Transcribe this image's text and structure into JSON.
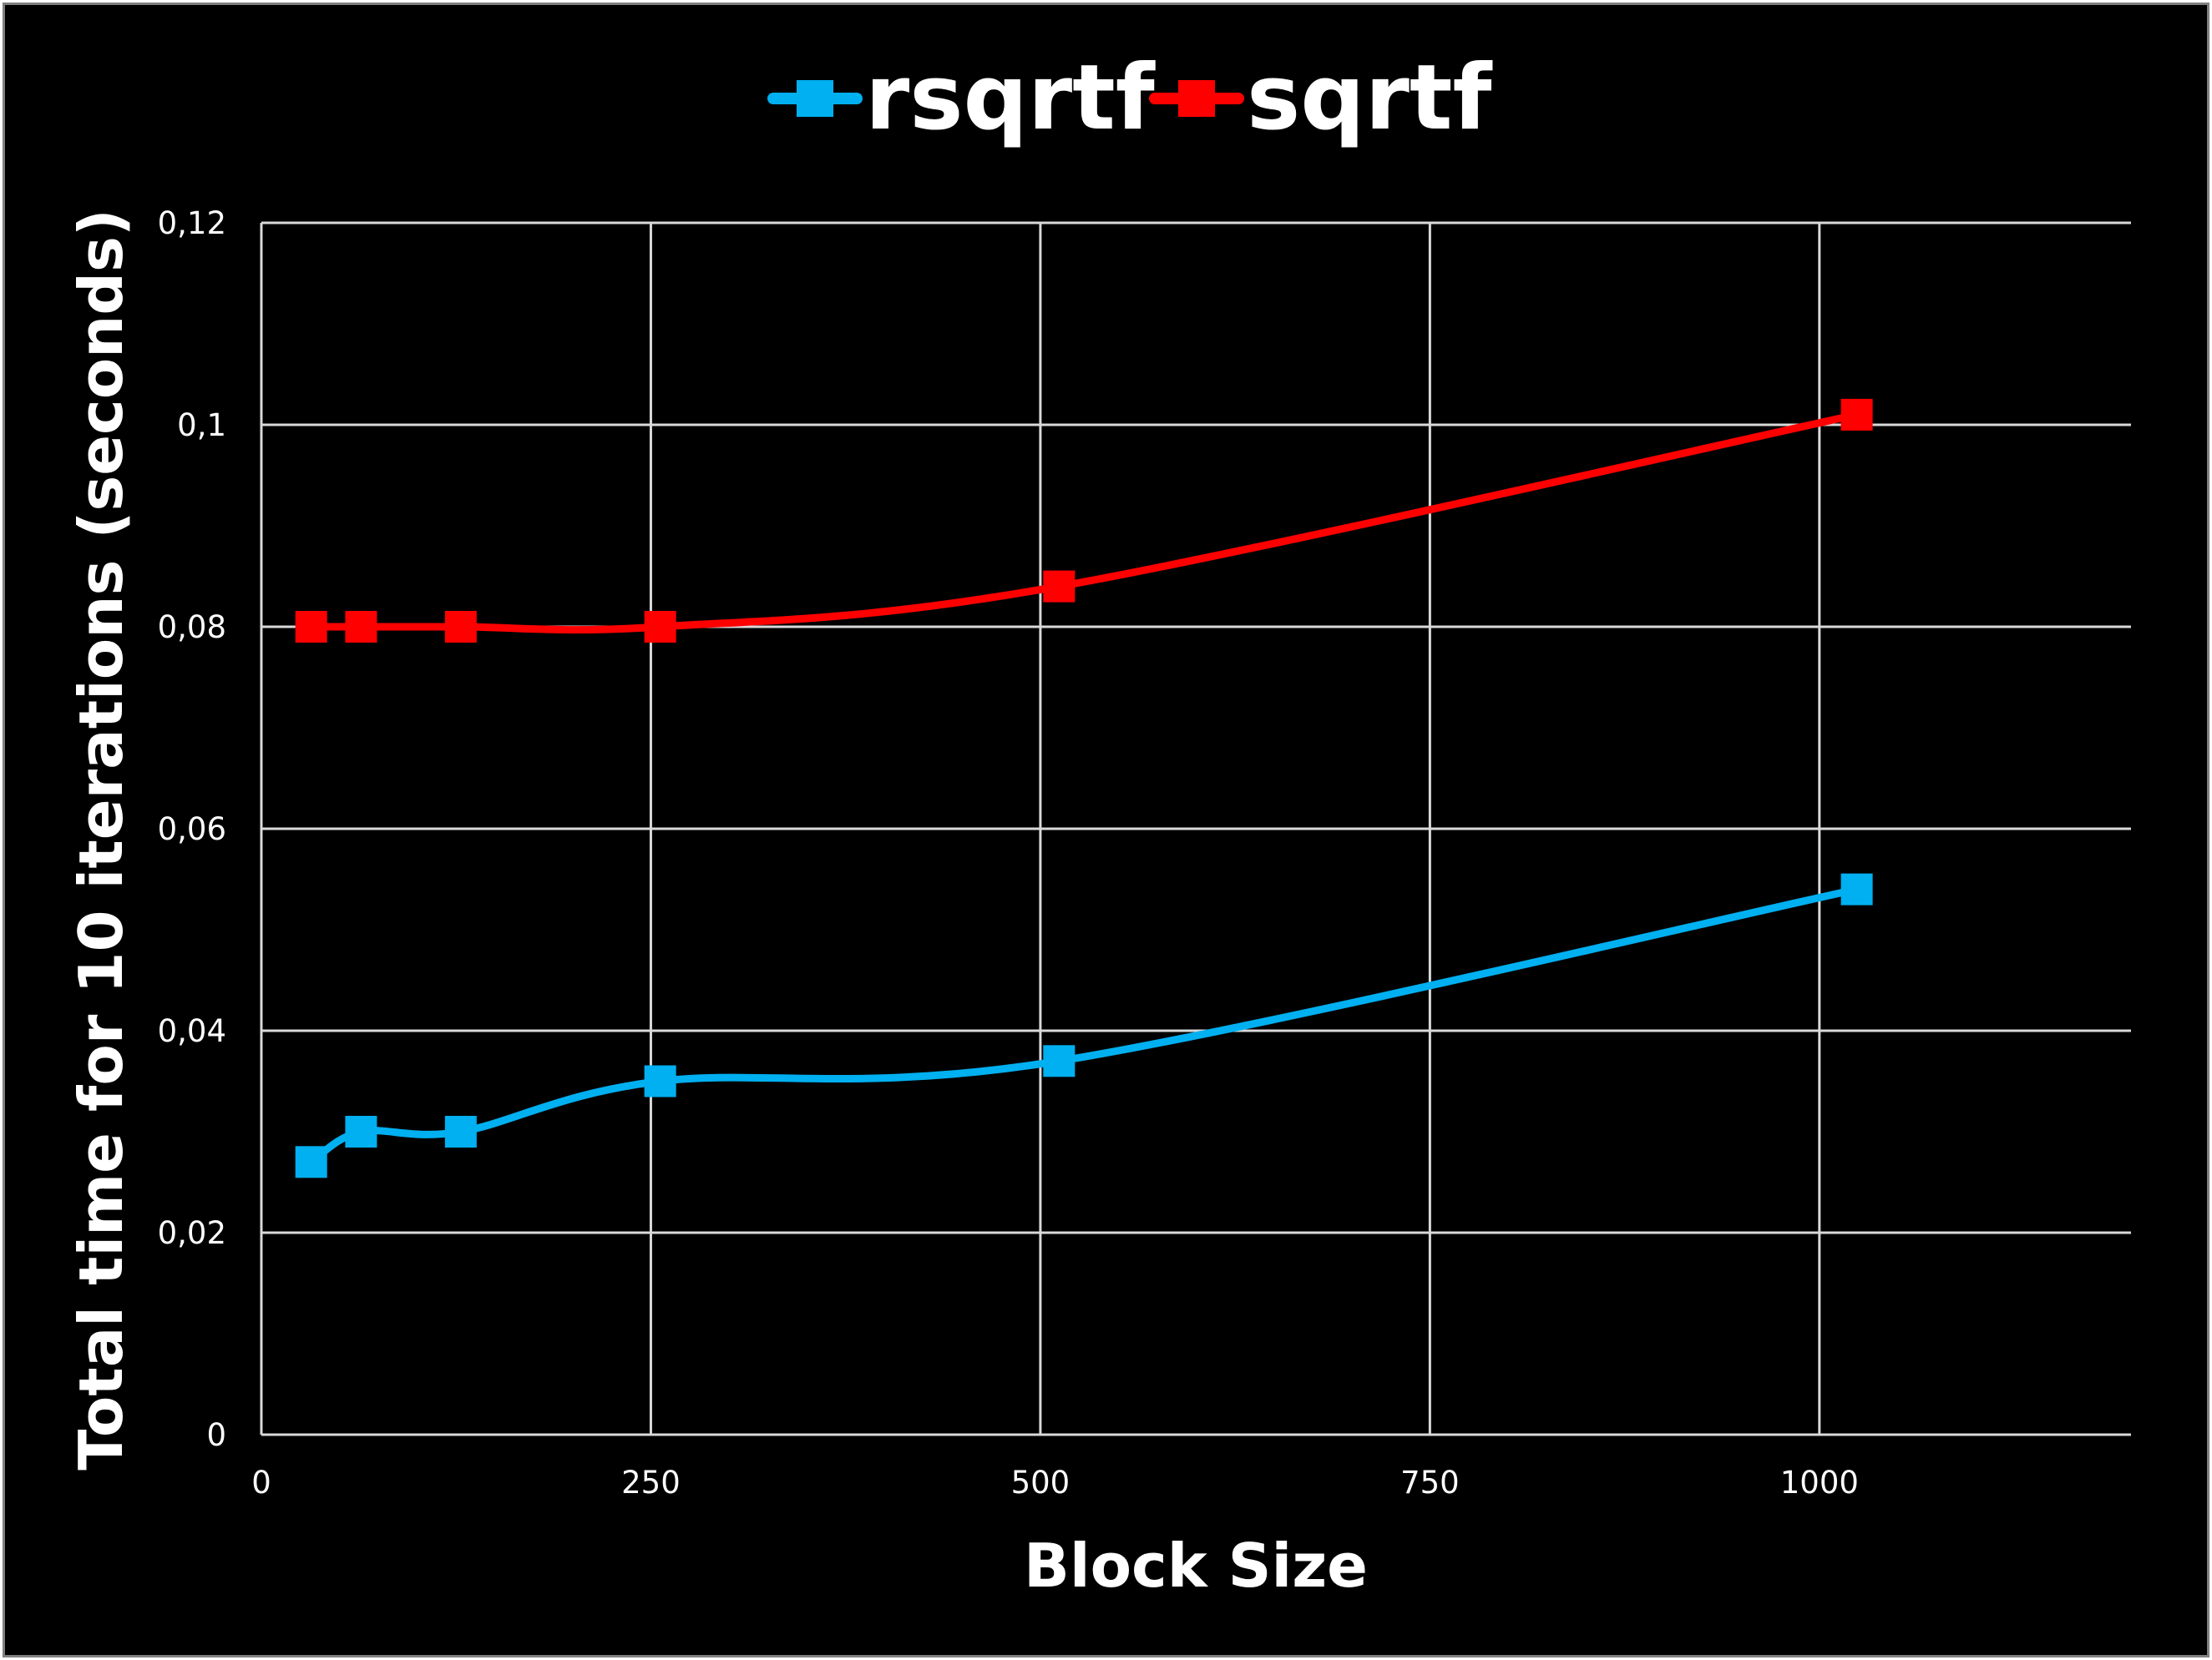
{
  "chart_data": {
    "type": "line",
    "title": "",
    "xlabel": "Block Size",
    "ylabel": "Total time for 10 iterations (seconds)",
    "xlim": [
      0,
      1200
    ],
    "ylim": [
      0,
      0.12
    ],
    "x_ticks": [
      0,
      250,
      500,
      750,
      1000
    ],
    "x_tick_labels": [
      "0",
      "250",
      "500",
      "750",
      "1000"
    ],
    "y_ticks": [
      0,
      0.02,
      0.04,
      0.06,
      0.08,
      0.1,
      0.12
    ],
    "y_tick_labels": [
      "0",
      "0,02",
      "0,04",
      "0,06",
      "0,08",
      "0,1",
      "0,12"
    ],
    "grid": true,
    "legend_position": "top-center",
    "smoothed": true,
    "marker": "square",
    "background_color": "#000000",
    "text_color": "#ffffff",
    "series": [
      {
        "name": "rsqrtf",
        "color": "#00b0f0",
        "x": [
          32,
          64,
          128,
          256,
          512,
          1024
        ],
        "y": [
          0.027,
          0.03,
          0.03,
          0.035,
          0.037,
          0.054
        ]
      },
      {
        "name": "sqrtf",
        "color": "#ff0000",
        "x": [
          32,
          64,
          128,
          256,
          512,
          1024
        ],
        "y": [
          0.08,
          0.08,
          0.08,
          0.08,
          0.084,
          0.101
        ]
      }
    ]
  }
}
